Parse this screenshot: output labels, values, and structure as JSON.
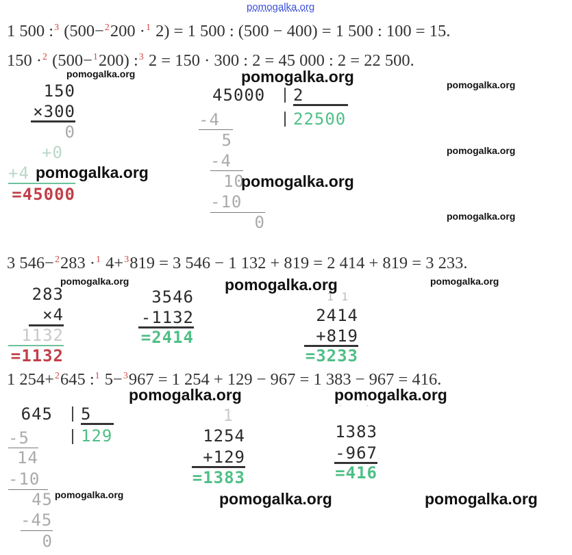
{
  "equations": [
    [
      {
        "t": "1 500 :"
      },
      {
        "s": "3"
      },
      {
        "t": " (500−"
      },
      {
        "s": "2"
      },
      {
        "t": "200 ·"
      },
      {
        "s": "1"
      },
      {
        "t": " 2) = 1 500 : (500 − 400) = 1 500 : 100 = 15."
      }
    ],
    [
      {
        "t": "150 ·"
      },
      {
        "s": "2"
      },
      {
        "t": " (500−"
      },
      {
        "s": "1"
      },
      {
        "t": "200) :"
      },
      {
        "s": "3"
      },
      {
        "t": " 2 = 150 · 300 : 2 = 45 000 : 2 = 22 500."
      }
    ],
    [
      {
        "t": "3 546−"
      },
      {
        "s": "2"
      },
      {
        "t": "283 ·"
      },
      {
        "s": "1"
      },
      {
        "t": " 4+"
      },
      {
        "s": "3"
      },
      {
        "t": "819 = 3 546 − 1 132 + 819 = 2 414 + 819 = 3 233."
      }
    ],
    [
      {
        "t": "1 254+"
      },
      {
        "s": "2"
      },
      {
        "t": "645 :"
      },
      {
        "s": "1"
      },
      {
        "t": " 5−"
      },
      {
        "s": "3"
      },
      {
        "t": "967 = 1 254 + 129 − 967 = 1 383 − 967 = 416."
      }
    ]
  ],
  "calc": {
    "mul1": {
      "a": "150",
      "b": "×300",
      "p1": "0",
      "p2": "+0",
      "p3": "+4",
      "r": "=45000"
    },
    "div1": {
      "dividend": "45000",
      "divisor": "2",
      "q": "22500",
      "s1": "-4",
      "r1": "5",
      "s2": "-4",
      "r2": "10",
      "s3": "-10",
      "r3": "0"
    },
    "mul2": {
      "a": "283",
      "b": "×4",
      "p1": "1132",
      "r": "=1132"
    },
    "sub1": {
      "a": "3546",
      "b": "-1132",
      "r": "=2414"
    },
    "add1": {
      "carry": "1 1",
      "a": "2414",
      "b": "+819",
      "r": "=3233"
    },
    "div2": {
      "dividend": "645",
      "divisor": "5",
      "q": "129",
      "s1": "-5",
      "r1": "14",
      "s2": "-10",
      "r2": "45",
      "s3": "-45",
      "r3": "0"
    },
    "add2": {
      "carry": "1",
      "a": "1254",
      "b": "+129",
      "r": "=1383"
    },
    "sub2": {
      "borrow": "˙ ˙",
      "a": "1383",
      "b": "-967",
      "r": "=416"
    }
  },
  "watermark": "pomogalka.org",
  "colors": {
    "result_green": "#4fbf86",
    "result_red": "#c0404a",
    "order_red": "#d04848",
    "watermark_top": "#3b4fd8"
  }
}
